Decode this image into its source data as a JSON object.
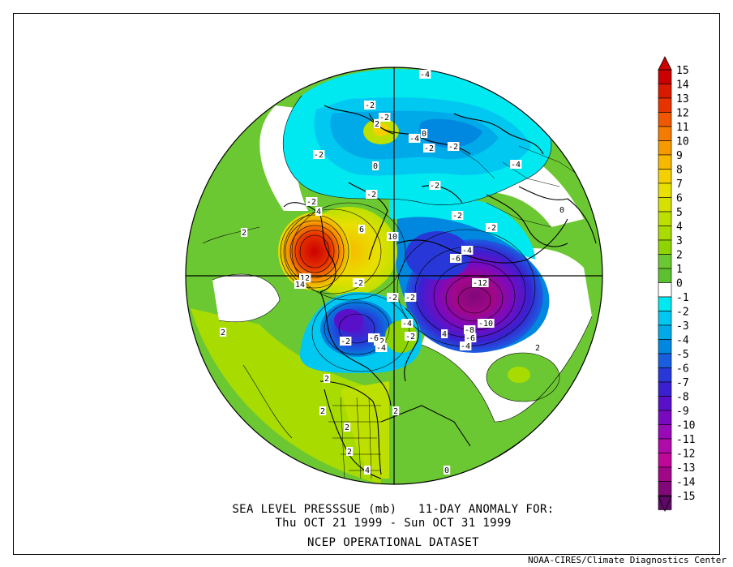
{
  "title_line1": "SEA LEVEL PRESSSUE (mb)   11-DAY ANOMALY FOR:",
  "title_line2": "Thu OCT 21 1999 - Sun OCT 31 1999",
  "dataset": "NCEP OPERATIONAL DATASET",
  "credit": "NOAA-CIRES/Climate Diagnostics Center",
  "colorbar": {
    "levels": [
      15,
      14,
      13,
      12,
      11,
      10,
      9,
      8,
      7,
      6,
      5,
      4,
      3,
      2,
      1,
      0,
      -1,
      -2,
      -3,
      -4,
      -5,
      -6,
      -7,
      -8,
      -9,
      -10,
      -11,
      -12,
      -13,
      -14,
      -15
    ],
    "colors": [
      "#cc0000",
      "#d81a00",
      "#e63300",
      "#ef5800",
      "#f47a00",
      "#f79a00",
      "#f7b900",
      "#f5d000",
      "#e8e000",
      "#d5e000",
      "#bde000",
      "#a8dc00",
      "#8ed400",
      "#6cc832",
      "#5cc030",
      "#ffffff",
      "#00e8f0",
      "#00c8f0",
      "#00aae8",
      "#0088e0",
      "#1a5ee0",
      "#2838d8",
      "#3a20d0",
      "#5a10c8",
      "#7a0ac0",
      "#980ab8",
      "#b00aa8",
      "#c00898",
      "#a00888",
      "#800878",
      "#600868"
    ]
  },
  "contour_labels": [
    "-4",
    "-2",
    "-2",
    "-4",
    "-2",
    "-2",
    "-2",
    "-2",
    "-2",
    "-2",
    "-4",
    "-2",
    "2",
    "4",
    "6",
    "10",
    "12",
    "14",
    "-2",
    "2",
    "-2",
    "-2",
    "-4",
    "-6",
    "-4",
    "-6",
    "-12",
    "-10",
    "-8",
    "-6",
    "-4",
    "-2",
    "2",
    "2",
    "2",
    "2",
    "2",
    "4",
    "2",
    "4",
    "-2",
    "-2",
    "0",
    "0",
    "0",
    "0",
    "2",
    "-2",
    "-4"
  ],
  "icons": {
    "cb_top": "triangle-up-arrow",
    "cb_bottom": "triangle-down-arrow"
  }
}
